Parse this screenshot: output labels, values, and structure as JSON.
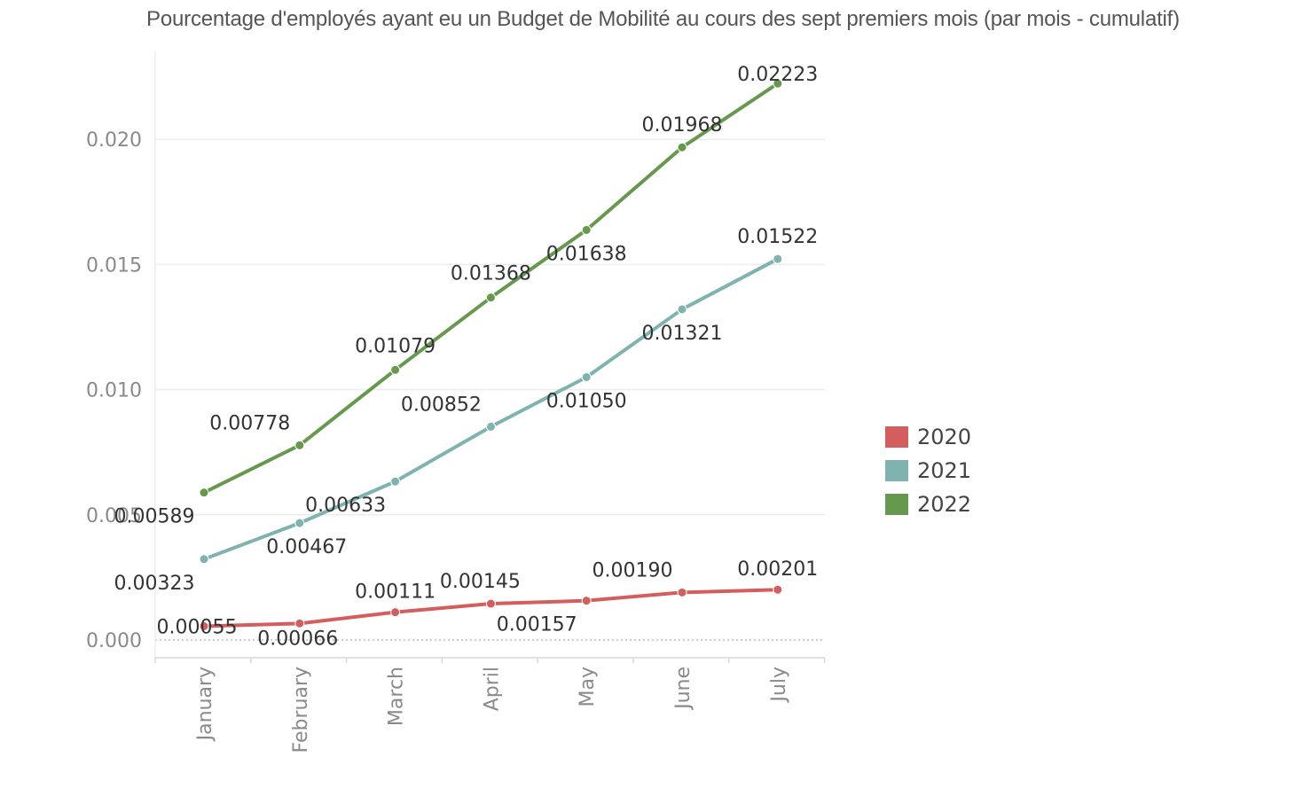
{
  "chart_data": {
    "type": "line",
    "title": "Pourcentage d'employés ayant eu un Budget de Mobilité au cours des sept premiers mois (par mois - cumulatif)",
    "categories": [
      "January",
      "February",
      "March",
      "April",
      "May",
      "June",
      "July"
    ],
    "ylim": [
      0,
      0.0235
    ],
    "yticks": [
      "0.000",
      "0.005",
      "0.010",
      "0.015",
      "0.020"
    ],
    "grid": true,
    "legend_position": "right",
    "series": [
      {
        "name": "2020",
        "color": "#d45e5e",
        "values": [
          0.00055,
          0.00066,
          0.00111,
          0.00145,
          0.00157,
          0.0019,
          0.00201
        ],
        "labels": [
          "0.00055",
          "0.00066",
          "0.00111",
          "0.00145",
          "0.00157",
          "0.00190",
          "0.00201"
        ]
      },
      {
        "name": "2021",
        "color": "#7fb3b0",
        "values": [
          0.00323,
          0.00467,
          0.00633,
          0.00852,
          0.0105,
          0.01321,
          0.01522
        ],
        "labels": [
          "0.00323",
          "0.00467",
          "0.00633",
          "0.00852",
          "0.01050",
          "0.01321",
          "0.01522"
        ]
      },
      {
        "name": "2022",
        "color": "#66994d",
        "values": [
          0.00589,
          0.00778,
          0.01079,
          0.01368,
          0.01638,
          0.01968,
          0.02223
        ],
        "labels": [
          "0.00589",
          "0.00778",
          "0.01079",
          "0.01368",
          "0.01638",
          "0.01968",
          "0.02223"
        ]
      }
    ]
  }
}
